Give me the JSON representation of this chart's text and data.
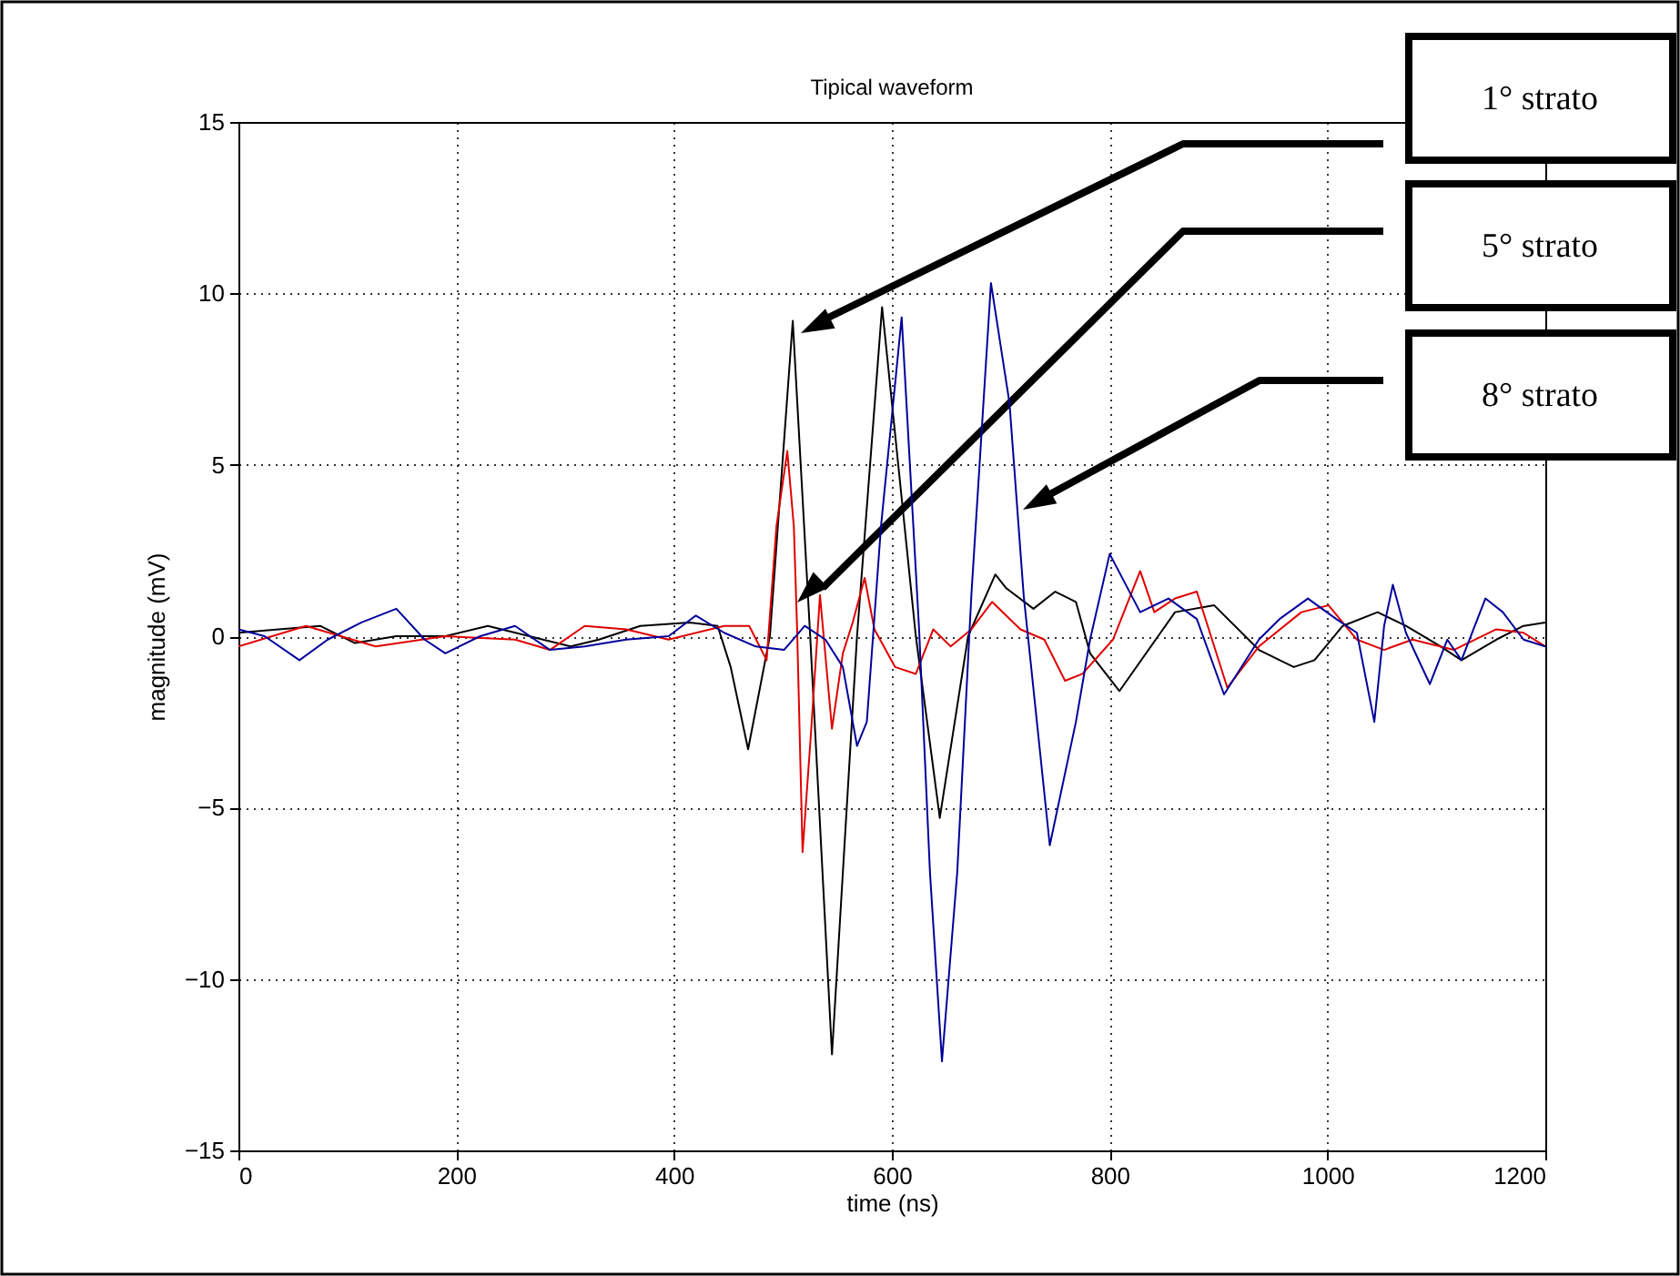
{
  "chart_data": {
    "type": "line",
    "title": "Tipical waveform",
    "xlabel": "time (ns)",
    "ylabel": "magnitude (mV)",
    "xlim": [
      0,
      1200
    ],
    "xticks": [
      0,
      200,
      400,
      600,
      800,
      1000,
      1200
    ],
    "annotations": [
      "1° strato",
      "5° strato",
      "8° strato"
    ],
    "ylim": [
      -15,
      15
    ],
    "yticks": [
      -15,
      -10,
      -5,
      0,
      5,
      10,
      15
    ],
    "grid": true,
    "series": [
      {
        "color": "#000000",
        "x": [
          0,
          37,
          75,
          107,
          145,
          190,
          229,
          267,
          305,
          331,
          369,
          414,
          440,
          452,
          468,
          488,
          509,
          525,
          545,
          568,
          591,
          622,
          644,
          670,
          695,
          705,
          730,
          750,
          769,
          782,
          809,
          860,
          896,
          937,
          969,
          988,
          1014,
          1046,
          1072,
          1104,
          1123,
          1155,
          1180,
          1200
        ],
        "values": [
          0.1,
          0.2,
          0.3,
          -0.2,
          0,
          0,
          0.3,
          0,
          -0.3,
          -0.1,
          0.3,
          0.4,
          0.3,
          -0.9,
          -3.3,
          0,
          9.2,
          0,
          -12.2,
          0,
          9.6,
          0,
          -5.3,
          0,
          1.8,
          1.4,
          0.8,
          1.3,
          1,
          -0.5,
          -1.6,
          0.7,
          0.9,
          -0.4,
          -0.9,
          -0.7,
          0.3,
          0.7,
          0.3,
          -0.3,
          -0.7,
          -0.1,
          0.3,
          0.4
        ]
      },
      {
        "color": "#e00000",
        "x": [
          0,
          62,
          126,
          190,
          254,
          286,
          318,
          356,
          395,
          446,
          469,
          485,
          494,
          504,
          510,
          513,
          518,
          526,
          534,
          545,
          555,
          564,
          575,
          584,
          603,
          622,
          638,
          654,
          673,
          692,
          718,
          740,
          759,
          775,
          803,
          828,
          841,
          860,
          880,
          908,
          937,
          976,
          1001,
          1027,
          1052,
          1078,
          1116,
          1155,
          1180,
          1200
        ],
        "values": [
          -0.3,
          0.3,
          -0.3,
          0,
          -0.1,
          -0.4,
          0.3,
          0.2,
          -0.1,
          0.3,
          0.3,
          -0.7,
          3.2,
          5.4,
          3.2,
          0.2,
          -6.3,
          -2.7,
          1.2,
          -2.7,
          -0.5,
          0.4,
          1.7,
          0.2,
          -0.9,
          -1.1,
          0.2,
          -0.3,
          0.2,
          1,
          0.2,
          -0.1,
          -1.3,
          -1.1,
          -0.1,
          1.9,
          0.7,
          1.1,
          1.3,
          -1.5,
          -0.3,
          0.7,
          0.9,
          -0.1,
          -0.4,
          -0.1,
          -0.4,
          0.2,
          0.1,
          -0.3
        ]
      },
      {
        "color": "#00009a",
        "x": [
          0,
          24,
          56,
          82,
          113,
          145,
          171,
          190,
          222,
          254,
          286,
          318,
          356,
          395,
          420,
          446,
          475,
          501,
          520,
          539,
          555,
          568,
          577,
          590,
          609,
          625,
          635,
          646,
          660,
          673,
          691,
          708,
          721,
          745,
          769,
          782,
          800,
          828,
          854,
          880,
          905,
          937,
          956,
          982,
          1008,
          1027,
          1043,
          1052,
          1060,
          1072,
          1094,
          1110,
          1123,
          1145,
          1161,
          1180,
          1200
        ],
        "values": [
          0.2,
          0,
          -0.7,
          -0.1,
          0.4,
          0.8,
          -0.1,
          -0.5,
          0,
          0.3,
          -0.4,
          -0.3,
          -0.1,
          0,
          0.6,
          0.1,
          -0.3,
          -0.4,
          0.3,
          -0.1,
          -0.9,
          -3.2,
          -2.5,
          3.2,
          9.3,
          0.2,
          -6.9,
          -12.4,
          -6.9,
          1.2,
          10.3,
          6.8,
          1.2,
          -6.1,
          -2.5,
          -0.1,
          2.4,
          0.7,
          1.1,
          0.5,
          -1.7,
          -0.1,
          0.5,
          1.1,
          0.5,
          0.1,
          -2.5,
          0.3,
          1.5,
          0.1,
          -1.4,
          -0.1,
          -0.7,
          1.1,
          0.7,
          -0.1,
          -0.3
        ]
      }
    ]
  }
}
